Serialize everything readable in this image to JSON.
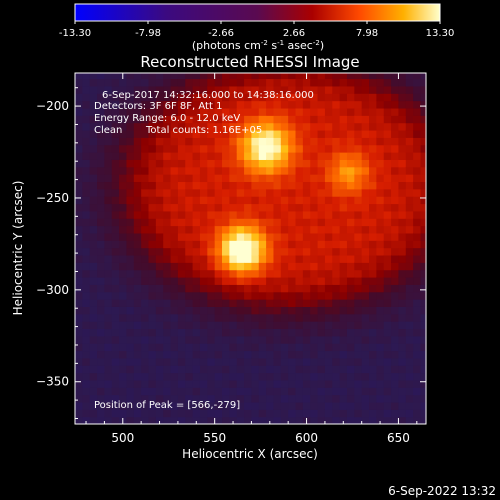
{
  "chart_data": {
    "type": "heatmap",
    "title": "Reconstructed RHESSI Image",
    "xlabel": "Heliocentric X (arcsec)",
    "ylabel": "Heliocentric Y (arcsec)",
    "xlim": [
      474,
      665
    ],
    "ylim": [
      -373,
      -182
    ],
    "x_ticks": [
      "500",
      "550",
      "600",
      "650"
    ],
    "y_ticks": [
      "-200",
      "-250",
      "-300",
      "-350"
    ],
    "colorbar": {
      "range": [
        -13.3,
        13.3
      ],
      "tick_labels": [
        "-13.30",
        "-7.98",
        "-2.66",
        "2.66",
        "7.98",
        "13.30"
      ],
      "unit_label": "(photons cm-2 s-1 asec-2)"
    },
    "annotations": [
      "6-Sep-2017 14:32:16.000 to 14:38:16.000",
      "Detectors: 3F 6F 8F, Att 1",
      "Energy Range: 6.0 - 12.0 keV",
      "Clean",
      "Total counts: 1.16E+05"
    ],
    "peak_label": "Position of Peak = [566,-279]",
    "peak_position": [
      566,
      -279
    ],
    "sources": [
      {
        "x": 565,
        "y": -278,
        "intensity": 13.3,
        "sigma": 9
      },
      {
        "x": 578,
        "y": -222,
        "intensity": 11.5,
        "sigma": 10
      },
      {
        "x": 623,
        "y": -236,
        "intensity": 7.0,
        "sigma": 8
      }
    ],
    "diffuse_region": {
      "center_x": 590,
      "center_y": -243,
      "radius_x": 92,
      "radius_y": 68,
      "intensity": 4.8
    },
    "background_level": -3.5,
    "colors": {
      "background": "#000000",
      "axes": "#ffffff",
      "negative": "#2b1a6b",
      "positive": "#ffcc33"
    }
  },
  "footer_timestamp": "6-Sep-2022 13:32"
}
